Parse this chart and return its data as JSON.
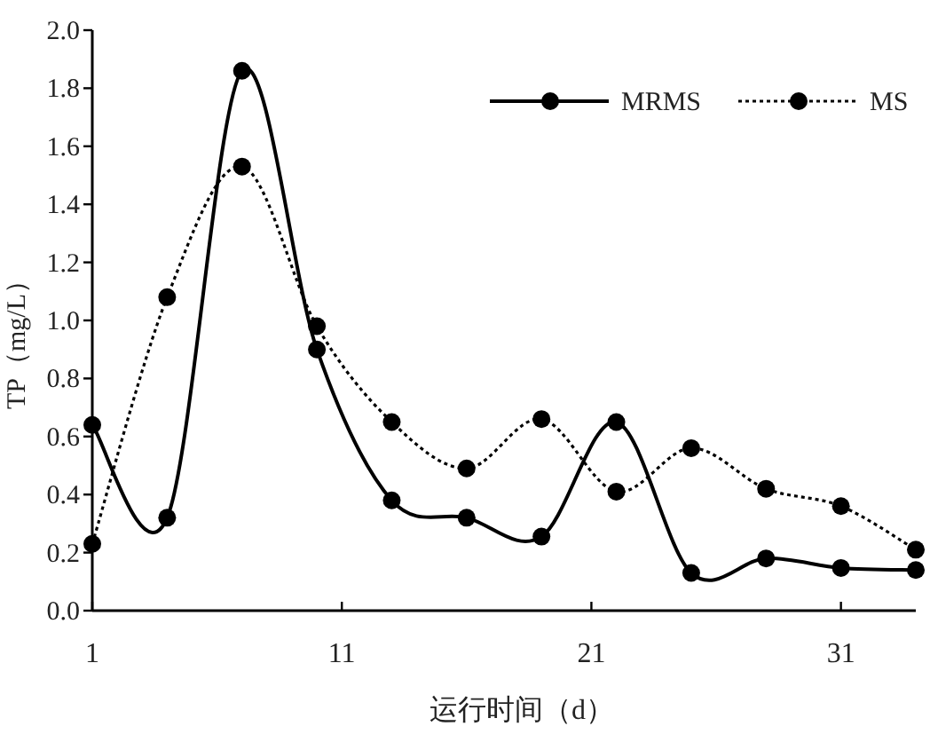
{
  "chart_data": {
    "type": "line",
    "xlabel": "运行时间（d）",
    "ylabel": "TP（mg/L）",
    "x": [
      1,
      4,
      7,
      10,
      13,
      16,
      19,
      22,
      25,
      28,
      31,
      34
    ],
    "series": [
      {
        "name": "MRMS",
        "color": "#000000",
        "line_style": "solid",
        "values": [
          0.64,
          0.32,
          1.86,
          0.9,
          0.38,
          0.32,
          0.255,
          0.65,
          0.13,
          0.18,
          0.147,
          0.14
        ]
      },
      {
        "name": "MS",
        "color": "#000000",
        "line_style": "dotted",
        "values": [
          0.23,
          1.08,
          1.53,
          0.98,
          0.65,
          0.49,
          0.66,
          0.41,
          0.56,
          0.42,
          0.36,
          0.21
        ]
      }
    ],
    "marker": "circle",
    "xlim": [
      1,
      34
    ],
    "xticks": [
      1,
      11,
      21,
      31
    ],
    "ylim": [
      0,
      2
    ],
    "yticks": [
      {
        "value": 0,
        "label": "0.0"
      },
      0.2,
      0.4,
      0.6,
      0.8,
      {
        "value": 1,
        "label": "1.0"
      },
      1.2,
      1.4,
      1.6,
      1.8,
      {
        "value": 2,
        "label": "2.0"
      }
    ],
    "grid": false,
    "legend": "top right"
  }
}
